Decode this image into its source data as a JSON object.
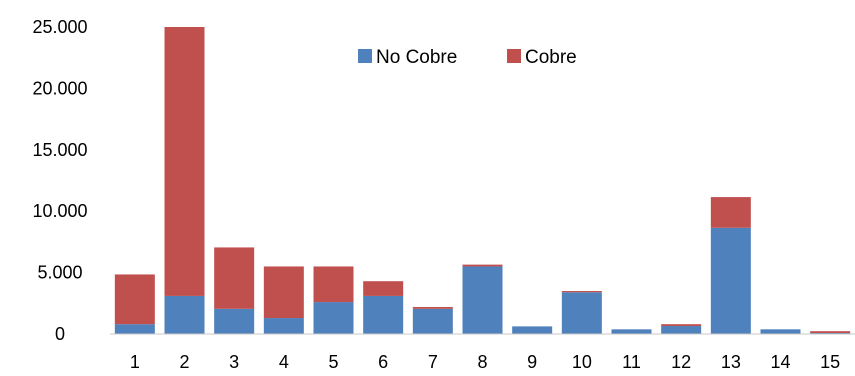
{
  "chart_data": {
    "type": "bar",
    "stacked": true,
    "categories": [
      "1",
      "2",
      "3",
      "4",
      "5",
      "6",
      "7",
      "8",
      "9",
      "10",
      "11",
      "12",
      "13",
      "14",
      "15"
    ],
    "series": [
      {
        "name": "No Cobre",
        "color": "#4F81BD",
        "values": [
          800,
          3100,
          2050,
          1300,
          2600,
          3100,
          2050,
          5500,
          620,
          3400,
          380,
          650,
          8650,
          380,
          80
        ]
      },
      {
        "name": "Cobre",
        "color": "#C0504D",
        "values": [
          4050,
          21900,
          5000,
          4200,
          2900,
          1200,
          150,
          150,
          0,
          100,
          0,
          150,
          2500,
          0,
          150
        ]
      }
    ],
    "ylim": [
      0,
      25000
    ],
    "yticks": [
      0,
      5000,
      10000,
      15000,
      20000,
      25000
    ],
    "ytick_labels": [
      "0",
      "5.000",
      "10.000",
      "15.000",
      "20.000",
      "25.000"
    ],
    "legend_position": "top-center",
    "grid": false
  }
}
